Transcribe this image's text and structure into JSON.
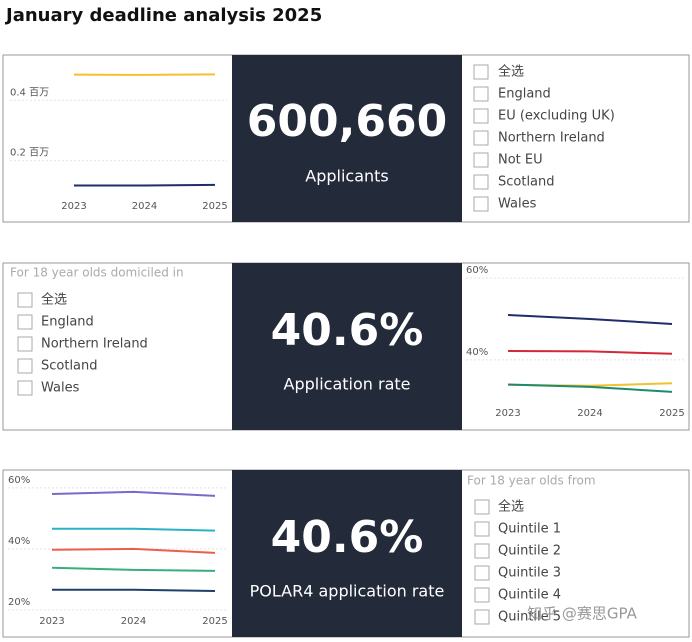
{
  "title": "January deadline analysis 2025",
  "kpis": [
    {
      "value": "600,660",
      "label": "Applicants"
    },
    {
      "value": "40.6%",
      "label": "Application rate"
    },
    {
      "value": "40.6%",
      "label": "POLAR4 application rate"
    }
  ],
  "filters": [
    {
      "items": [
        "全选",
        "England",
        "EU (excluding UK)",
        "Northern Ireland",
        "Not EU",
        "Scotland",
        "Wales"
      ]
    },
    {
      "header": "For 18 year olds domiciled in",
      "items": [
        "全选",
        "England",
        "Northern Ireland",
        "Scotland",
        "Wales"
      ]
    },
    {
      "header": "For 18 year olds from",
      "items": [
        "全选",
        "Quintile 1",
        "Quintile 2",
        "Quintile 3",
        "Quintile 4",
        "Quintile 5"
      ]
    }
  ],
  "watermark": "知乎 @赛思GPA",
  "chart_data": [
    {
      "type": "line",
      "categories": [
        "2023",
        "2024",
        "2025"
      ],
      "series": [
        {
          "color": "#f2c12e",
          "values": [
            0.485,
            0.484,
            0.486
          ]
        },
        {
          "color": "#1f2d6b",
          "values": [
            0.118,
            0.118,
            0.12
          ]
        }
      ],
      "ylim": [
        0.07,
        0.54
      ],
      "yticks": [
        {
          "value": 0.2,
          "label": "0.2 百万"
        },
        {
          "value": 0.4,
          "label": "0.4 百万"
        }
      ],
      "grid": true
    },
    {
      "type": "line",
      "categories": [
        "2023",
        "2024",
        "2025"
      ],
      "series": [
        {
          "color": "#1f2d6b",
          "values": [
            51,
            50,
            48.8
          ]
        },
        {
          "color": "#d2283a",
          "values": [
            42.2,
            42.1,
            41.5
          ]
        },
        {
          "color": "#f2c12e",
          "values": [
            33.9,
            33.7,
            34.3
          ]
        },
        {
          "color": "#1d8a6e",
          "values": [
            34,
            33.4,
            32.2
          ]
        }
      ],
      "ylim": [
        30.2,
        62
      ],
      "yticks": [
        {
          "value": 40,
          "label": "40%"
        },
        {
          "value": 60,
          "label": "60%"
        }
      ],
      "grid": true
    },
    {
      "type": "line",
      "categories": [
        "2023",
        "2024",
        "2025"
      ],
      "series": [
        {
          "color": "#7b68c8",
          "values": [
            58,
            58.7,
            57.4
          ]
        },
        {
          "color": "#2bb0c9",
          "values": [
            46.6,
            46.6,
            46
          ]
        },
        {
          "color": "#e8604c",
          "values": [
            39.7,
            40,
            38.7
          ]
        },
        {
          "color": "#3aad7d",
          "values": [
            33.8,
            33.1,
            32.8
          ]
        },
        {
          "color": "#1f3f6b",
          "values": [
            26.6,
            26.6,
            26.2
          ]
        }
      ],
      "ylim": [
        19.3,
        62.6
      ],
      "yticks": [
        {
          "value": 20,
          "label": "20%"
        },
        {
          "value": 40,
          "label": "40%"
        },
        {
          "value": 60,
          "label": "60%"
        }
      ],
      "grid": true
    }
  ]
}
